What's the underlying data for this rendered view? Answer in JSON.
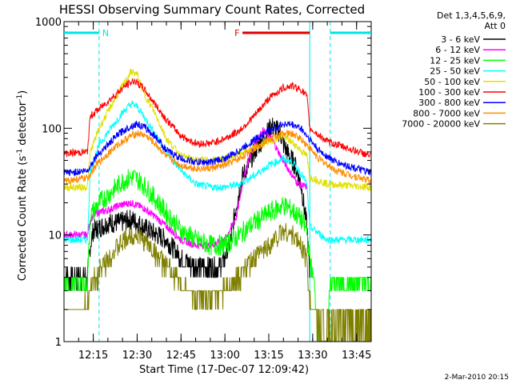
{
  "chart_data": {
    "type": "line",
    "title": "HESSI Observing Summary Count Rates, Corrected",
    "xlabel": "Start Time (17-Dec-07 12:09:42)",
    "ylabel_main": "Corrected Count Rate (s",
    "ylabel_sup1": "-1",
    "ylabel_mid": " detector",
    "ylabel_sup2": "-1",
    "ylabel_end": ")",
    "y_scale": "log",
    "ylim": [
      1,
      1000
    ],
    "xlim_min": [
      725,
      830
    ],
    "x_ticks": [
      {
        "label": "12:15",
        "min": 735
      },
      {
        "label": "12:30",
        "min": 750
      },
      {
        "label": "12:45",
        "min": 765
      },
      {
        "label": "13:00",
        "min": 780
      },
      {
        "label": "13:15",
        "min": 795
      },
      {
        "label": "13:30",
        "min": 810
      },
      {
        "label": "13:45",
        "min": 825
      }
    ],
    "y_ticks": [
      {
        "label": "1",
        "value": 1
      },
      {
        "label": "10",
        "value": 10
      },
      {
        "label": "100",
        "value": 100
      },
      {
        "label": "1000",
        "value": 1000
      }
    ],
    "legend_header": [
      "Det 1,3,4,5,6,9,",
      "Att 0"
    ],
    "series": [
      {
        "name": "3 - 6 keV",
        "color": "#000000",
        "x": [
          725,
          733,
          734,
          735,
          738,
          740,
          744,
          748,
          750,
          754,
          760,
          765,
          770,
          775,
          778,
          780,
          782,
          784,
          786,
          788,
          790,
          793,
          796,
          799,
          800,
          802,
          804,
          806,
          808,
          809
        ],
        "y": [
          4.0,
          4.0,
          8.0,
          11.0,
          12.0,
          13.0,
          13.0,
          14.0,
          13.0,
          11.0,
          9.0,
          6.0,
          5.0,
          5.0,
          5.0,
          6.0,
          9.0,
          20.0,
          35.0,
          45.0,
          60.0,
          80.0,
          105.0,
          90.0,
          70.0,
          55.0,
          45.0,
          30.0,
          12.0,
          4.0
        ]
      },
      {
        "name": "6 - 12 keV",
        "color": "#ff00ff",
        "x": [
          725,
          733,
          734,
          736,
          740,
          744,
          748,
          752,
          756,
          760,
          765,
          770,
          775,
          780,
          784,
          786,
          788,
          790,
          793,
          796,
          799,
          802,
          805,
          808
        ],
        "y": [
          10.0,
          10.0,
          14.0,
          16.0,
          17.0,
          19.0,
          20.0,
          18.0,
          15.0,
          12.0,
          9.0,
          8.0,
          8.0,
          9.0,
          15.0,
          30.0,
          50.0,
          70.0,
          95.0,
          80.0,
          55.0,
          40.0,
          30.0,
          28.0
        ]
      },
      {
        "name": "12 - 25 keV",
        "color": "#00ff00",
        "x": [
          725,
          733,
          734,
          737,
          741,
          745,
          749,
          752,
          756,
          760,
          765,
          770,
          775,
          780,
          785,
          790,
          795,
          800,
          803,
          806,
          808,
          809,
          813,
          815,
          816,
          830
        ],
        "y": [
          3.5,
          3.5,
          15.0,
          20.0,
          25.0,
          32.0,
          35.0,
          30.0,
          22.0,
          16.0,
          11.0,
          9.0,
          8.0,
          8.0,
          10.0,
          13.0,
          16.0,
          19.0,
          17.0,
          14.0,
          11.0,
          6.0,
          1.2,
          1.2,
          3.5,
          3.5
        ]
      },
      {
        "name": "25 - 50 keV",
        "color": "#00ffff",
        "x": [
          725,
          733,
          734,
          737,
          741,
          745,
          748,
          750,
          754,
          760,
          765,
          770,
          775,
          780,
          785,
          790,
          795,
          800,
          803,
          806,
          808,
          809,
          815,
          830
        ],
        "y": [
          9.0,
          9.0,
          40.0,
          70.0,
          100.0,
          140.0,
          170.0,
          160.0,
          110.0,
          60.0,
          40.0,
          30.0,
          28.0,
          28.0,
          30.0,
          36.0,
          45.0,
          52.0,
          48.0,
          38.0,
          30.0,
          12.0,
          9.0,
          9.0
        ]
      },
      {
        "name": "50 - 100 keV",
        "color": "#e0e000",
        "x": [
          725,
          733,
          734,
          737,
          741,
          745,
          748,
          750,
          752,
          756,
          760,
          765,
          770,
          775,
          780,
          785,
          790,
          795,
          800,
          804,
          808,
          809,
          815,
          830
        ],
        "y": [
          28.0,
          28.0,
          60.0,
          100.0,
          160.0,
          250.0,
          340.0,
          320.0,
          220.0,
          140.0,
          80.0,
          55.0,
          50.0,
          50.0,
          52.0,
          58.0,
          65.0,
          75.0,
          85.0,
          70.0,
          55.0,
          35.0,
          30.0,
          28.0
        ]
      },
      {
        "name": "100 - 300 keV",
        "color": "#ff0000",
        "x": [
          725,
          733,
          734,
          738,
          742,
          746,
          749,
          752,
          756,
          760,
          765,
          770,
          775,
          780,
          785,
          790,
          795,
          800,
          803,
          806,
          808,
          809,
          815,
          830
        ],
        "y": [
          58.0,
          60.0,
          130.0,
          160.0,
          200.0,
          250.0,
          280.0,
          240.0,
          170.0,
          120.0,
          85.0,
          72.0,
          72.0,
          80.0,
          95.0,
          130.0,
          190.0,
          240.0,
          250.0,
          230.0,
          200.0,
          100.0,
          75.0,
          55.0
        ]
      },
      {
        "name": "300 - 800 keV",
        "color": "#0000ff",
        "x": [
          725,
          733,
          736,
          740,
          744,
          748,
          750,
          753,
          757,
          760,
          765,
          770,
          775,
          780,
          785,
          790,
          795,
          800,
          803,
          806,
          808,
          812,
          818,
          830
        ],
        "y": [
          38.0,
          40.0,
          55.0,
          70.0,
          90.0,
          105.0,
          110.0,
          100.0,
          80.0,
          62.0,
          52.0,
          48.0,
          48.0,
          52.0,
          62.0,
          78.0,
          95.0,
          110.0,
          108.0,
          100.0,
          85.0,
          62.0,
          48.0,
          38.0
        ]
      },
      {
        "name": "800 - 7000 keV",
        "color": "#ff8c00",
        "x": [
          725,
          733,
          736,
          740,
          744,
          748,
          750,
          753,
          757,
          760,
          765,
          770,
          775,
          780,
          785,
          790,
          795,
          800,
          803,
          806,
          808,
          812,
          818,
          830
        ],
        "y": [
          32.0,
          34.0,
          45.0,
          58.0,
          72.0,
          85.0,
          90.0,
          85.0,
          68.0,
          54.0,
          45.0,
          42.0,
          42.0,
          45.0,
          52.0,
          65.0,
          78.0,
          90.0,
          88.0,
          80.0,
          70.0,
          52.0,
          40.0,
          32.0
        ]
      },
      {
        "name": "7000 - 20000 keV",
        "color": "#808000",
        "x": [
          725,
          733,
          734,
          736,
          740,
          744,
          748,
          750,
          754,
          760,
          765,
          770,
          775,
          780,
          785,
          790,
          795,
          800,
          803,
          806,
          808,
          809,
          812,
          830
        ],
        "y": [
          2.0,
          2.0,
          3.0,
          4.0,
          6.0,
          8.0,
          10.0,
          10.0,
          8.0,
          5.0,
          3.5,
          2.5,
          2.5,
          3.0,
          4.0,
          6.0,
          8.0,
          11.0,
          10.0,
          8.0,
          6.0,
          2.5,
          1.5,
          1.5
        ]
      }
    ],
    "flags": [
      {
        "label": "N",
        "color": "#00e5e5",
        "segments": [
          [
            725,
            737
          ],
          [
            816,
            830
          ]
        ]
      },
      {
        "label": "F",
        "color": "#e00000",
        "segments": [
          [
            786,
            809
          ]
        ]
      }
    ],
    "vlines": [
      {
        "x": 737,
        "color": "#00e5e5",
        "style": "dashed"
      },
      {
        "x": 809,
        "color": "#00e5e5",
        "style": "solid"
      },
      {
        "x": 816,
        "color": "#00e5e5",
        "style": "dashed"
      }
    ],
    "footer": "2-Mar-2010 20:15"
  }
}
